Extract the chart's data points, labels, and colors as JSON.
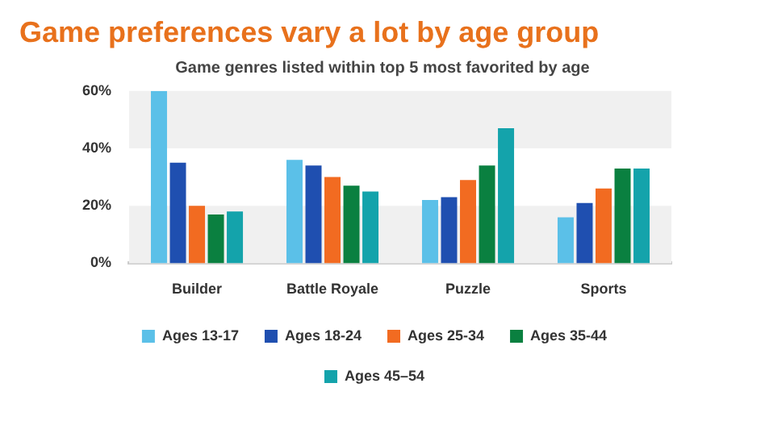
{
  "chart_data": {
    "type": "bar",
    "title": "Game preferences vary a lot by age group",
    "subtitle": "Game genres listed within top 5 most favorited by age",
    "categories": [
      "Builder",
      "Battle Royale",
      "Puzzle",
      "Sports"
    ],
    "series": [
      {
        "name": "Ages 13-17",
        "color": "#5bc0e8",
        "values": [
          60,
          36,
          22,
          16
        ]
      },
      {
        "name": "Ages 18-24",
        "color": "#1f4fb0",
        "values": [
          35,
          34,
          23,
          21
        ]
      },
      {
        "name": "Ages 25-34",
        "color": "#f26b21",
        "values": [
          20,
          30,
          29,
          26
        ]
      },
      {
        "name": "Ages 35-44",
        "color": "#0a8040",
        "values": [
          17,
          27,
          34,
          33
        ]
      },
      {
        "name": "Ages 45–54",
        "color": "#14a3ab",
        "values": [
          18,
          25,
          47,
          33
        ]
      }
    ],
    "ylim": [
      0,
      60
    ],
    "yticks": [
      {
        "value": 0,
        "label": "0%"
      },
      {
        "value": 20,
        "label": "20%"
      },
      {
        "value": 40,
        "label": "40%"
      },
      {
        "value": 60,
        "label": "60%"
      }
    ],
    "legend": "bottom"
  }
}
